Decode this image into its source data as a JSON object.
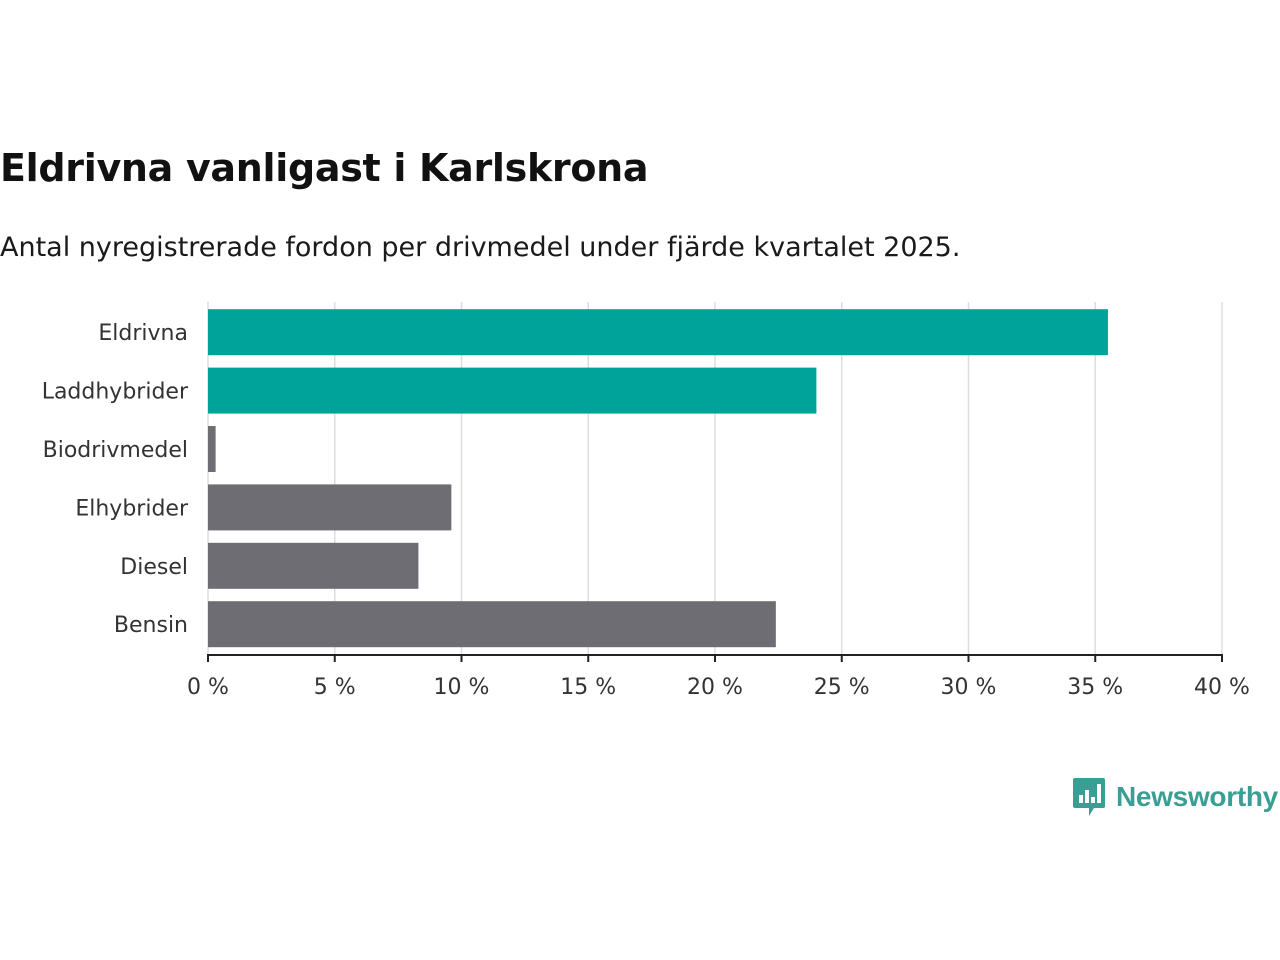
{
  "chart_data": {
    "type": "bar",
    "orientation": "horizontal",
    "title": "Eldrivna vanligast i Karlskrona",
    "subtitle": "Antal nyregistrerade fordon per drivmedel under fjärde kvartalet 2025.",
    "categories": [
      "Eldrivna",
      "Laddhybrider",
      "Biodrivmedel",
      "Elhybrider",
      "Diesel",
      "Bensin"
    ],
    "values": [
      35.5,
      24.0,
      0.3,
      9.6,
      8.3,
      22.4
    ],
    "bar_colors": [
      "#00a39a",
      "#00a39a",
      "#6e6d73",
      "#6e6d73",
      "#6e6d73",
      "#6e6d73"
    ],
    "xlim": [
      0,
      40
    ],
    "xticks": [
      0,
      5,
      10,
      15,
      20,
      25,
      30,
      35,
      40
    ],
    "xtick_labels": [
      "0 %",
      "5 %",
      "10 %",
      "15 %",
      "20 %",
      "25 %",
      "30 %",
      "35 %",
      "40 %"
    ],
    "xlabel": "",
    "ylabel": "",
    "grid": true
  },
  "brand": {
    "name": "Newsworthy",
    "logo_icon": "newsworthy-logo-icon",
    "color": "#3a9e94"
  }
}
